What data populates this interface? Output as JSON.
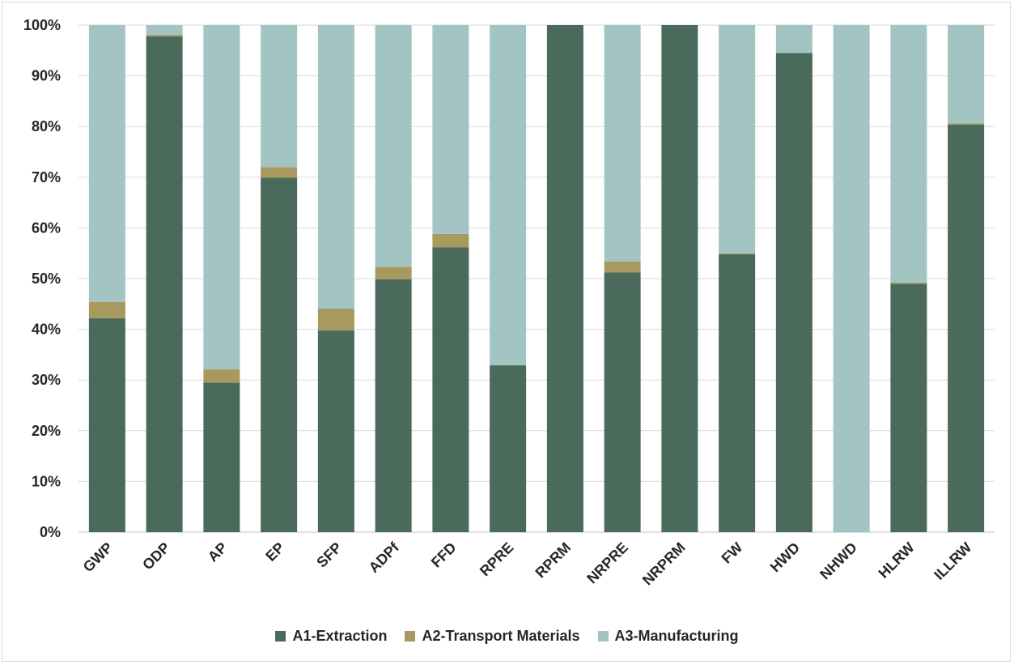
{
  "chart_data": {
    "type": "bar",
    "stacked": true,
    "normalized": true,
    "categories": [
      "GWP",
      "ODP",
      "AP",
      "EP",
      "SFP",
      "ADPf",
      "FFD",
      "RPRE",
      "RPRM",
      "NRPRE",
      "NRPRM",
      "FW",
      "HWD",
      "NHWD",
      "HLRW",
      "ILLRW"
    ],
    "series": [
      {
        "name": "A1-Extraction",
        "color": "#4a6a5b",
        "values": [
          42.2,
          97.8,
          29.5,
          69.9,
          39.8,
          49.9,
          56.2,
          32.9,
          100.0,
          51.2,
          100.0,
          54.8,
          94.5,
          0.0,
          49.0,
          80.4
        ]
      },
      {
        "name": "A2-Transport Materials",
        "color": "#a89a5e",
        "values": [
          3.2,
          0.3,
          2.6,
          2.1,
          4.3,
          2.4,
          2.6,
          0.0,
          0.0,
          2.2,
          0.0,
          0.2,
          0.0,
          0.0,
          0.2,
          0.2
        ]
      },
      {
        "name": "A3-Manufacturing",
        "color": "#a2c4c2",
        "values": [
          54.6,
          1.9,
          67.9,
          28.0,
          55.9,
          47.7,
          41.2,
          67.1,
          0.0,
          46.6,
          0.0,
          45.0,
          5.5,
          100.0,
          50.8,
          19.4
        ]
      }
    ],
    "yticks": [
      "0%",
      "10%",
      "20%",
      "30%",
      "40%",
      "50%",
      "60%",
      "70%",
      "80%",
      "90%",
      "100%"
    ],
    "ylim": [
      0,
      100
    ],
    "grid": true,
    "legend_position": "bottom",
    "title": "",
    "xlabel": "",
    "ylabel": ""
  }
}
